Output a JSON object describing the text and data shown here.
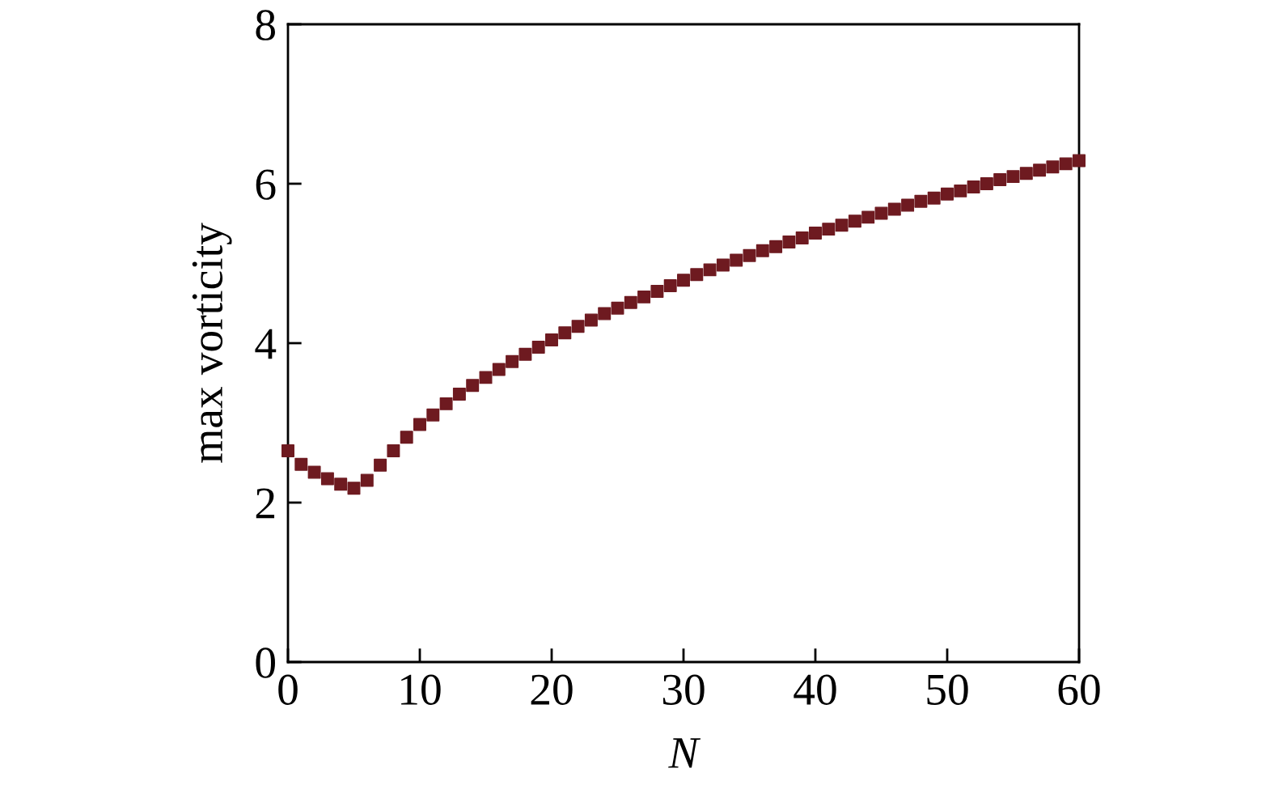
{
  "chart_data": {
    "type": "scatter",
    "xlabel": "N",
    "ylabel": "max vorticity",
    "marker": "square",
    "grid": false,
    "legend": false,
    "x": [
      0,
      1,
      2,
      3,
      4,
      5,
      6,
      7,
      8,
      9,
      10,
      11,
      12,
      13,
      14,
      15,
      16,
      17,
      18,
      19,
      20,
      21,
      22,
      23,
      24,
      25,
      26,
      27,
      28,
      29,
      30,
      31,
      32,
      33,
      34,
      35,
      36,
      37,
      38,
      39,
      40,
      41,
      42,
      43,
      44,
      45,
      46,
      47,
      48,
      49,
      50,
      51,
      52,
      53,
      54,
      55,
      56,
      57,
      58,
      59,
      60
    ],
    "series": [
      {
        "color": "#6e1a20",
        "values": [
          2.65,
          2.48,
          2.38,
          2.3,
          2.23,
          2.18,
          2.28,
          2.47,
          2.65,
          2.82,
          2.98,
          3.1,
          3.24,
          3.36,
          3.47,
          3.57,
          3.67,
          3.77,
          3.86,
          3.95,
          4.04,
          4.13,
          4.21,
          4.29,
          4.37,
          4.44,
          4.51,
          4.58,
          4.65,
          4.72,
          4.79,
          4.86,
          4.92,
          4.98,
          5.04,
          5.1,
          5.16,
          5.21,
          5.27,
          5.32,
          5.38,
          5.43,
          5.48,
          5.53,
          5.58,
          5.63,
          5.68,
          5.73,
          5.78,
          5.82,
          5.87,
          5.91,
          5.96,
          6.0,
          6.05,
          6.09,
          6.13,
          6.17,
          6.21,
          6.25,
          6.29
        ]
      }
    ],
    "xlim": [
      0,
      60
    ],
    "ylim": [
      0,
      8
    ],
    "xticks": [
      0,
      10,
      20,
      30,
      40,
      50,
      60
    ],
    "yticks": [
      0,
      2,
      4,
      6,
      8
    ]
  }
}
